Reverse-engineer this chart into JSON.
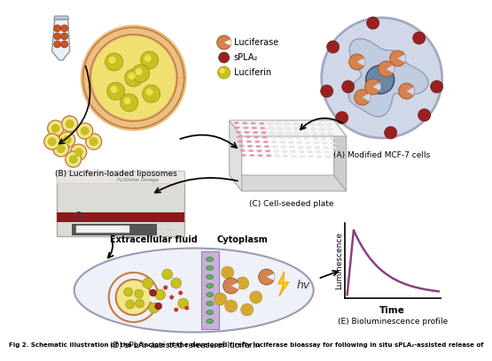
{
  "caption": "Fig 2. Schematic illustration of the principle of the developed firefly luciferase bioassay for following in situ sPLA₂-assisted release of",
  "panel_A_label": "(A) Modified MCF-7 cells",
  "panel_B_label": "(B) Luciferin-loaded liposomes",
  "panel_C_label": "(C) Cell-seeded plate",
  "panel_D_label": "(D) sPLA₂-assisted release of luciferin",
  "panel_E_label": "(E) Bioluminescence profile",
  "legend_luciferase": "Luciferase",
  "legend_spla2": "sPLA₂",
  "legend_luciferin": "Luciferin",
  "extracellular_label": "Extracellular fluid",
  "cytoplasm_label": "Cytoplasm",
  "hv_label": "hv",
  "time_label": "Time",
  "luminescence_label": "Luminescence",
  "bg_color": "#ffffff",
  "curve_color": "#8B4080",
  "luciferase_color": "#D4824E",
  "spla2_color": "#9B2020",
  "luciferin_color": "#D4C820",
  "cell_fill": "#D0D8E8",
  "cell_edge": "#A0AABF",
  "nucleus_fill": "#6888A8",
  "liposome_ring": "#C87941",
  "liposome_fill": "#F0E070",
  "mem_fill": "#C8B0D8",
  "mem_edge": "#9880B8",
  "green_channel": "#60B060"
}
